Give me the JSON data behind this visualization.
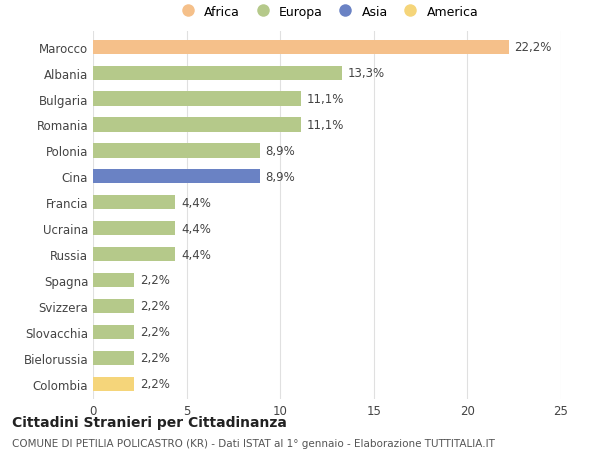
{
  "categories": [
    "Marocco",
    "Albania",
    "Bulgaria",
    "Romania",
    "Polonia",
    "Cina",
    "Francia",
    "Ucraina",
    "Russia",
    "Spagna",
    "Svizzera",
    "Slovacchia",
    "Bielorussia",
    "Colombia"
  ],
  "values": [
    22.2,
    13.3,
    11.1,
    11.1,
    8.9,
    8.9,
    4.4,
    4.4,
    4.4,
    2.2,
    2.2,
    2.2,
    2.2,
    2.2
  ],
  "labels": [
    "22,2%",
    "13,3%",
    "11,1%",
    "11,1%",
    "8,9%",
    "8,9%",
    "4,4%",
    "4,4%",
    "4,4%",
    "2,2%",
    "2,2%",
    "2,2%",
    "2,2%",
    "2,2%"
  ],
  "colors": [
    "#F5C08A",
    "#B5C98A",
    "#B5C98A",
    "#B5C98A",
    "#B5C98A",
    "#6A82C4",
    "#B5C98A",
    "#B5C98A",
    "#B5C98A",
    "#B5C98A",
    "#B5C98A",
    "#B5C98A",
    "#B5C98A",
    "#F5D57A"
  ],
  "legend_labels": [
    "Africa",
    "Europa",
    "Asia",
    "America"
  ],
  "legend_colors": [
    "#F5C08A",
    "#B5C98A",
    "#6A82C4",
    "#F5D57A"
  ],
  "xlim": [
    0,
    25
  ],
  "xticks": [
    0,
    5,
    10,
    15,
    20,
    25
  ],
  "title": "Cittadini Stranieri per Cittadinanza",
  "subtitle": "COMUNE DI PETILIA POLICASTRO (KR) - Dati ISTAT al 1° gennaio - Elaborazione TUTTITALIA.IT",
  "background_color": "#ffffff",
  "grid_color": "#e0e0e0",
  "bar_height": 0.55,
  "label_fontsize": 8.5,
  "tick_fontsize": 8.5,
  "title_fontsize": 10,
  "subtitle_fontsize": 7.5
}
